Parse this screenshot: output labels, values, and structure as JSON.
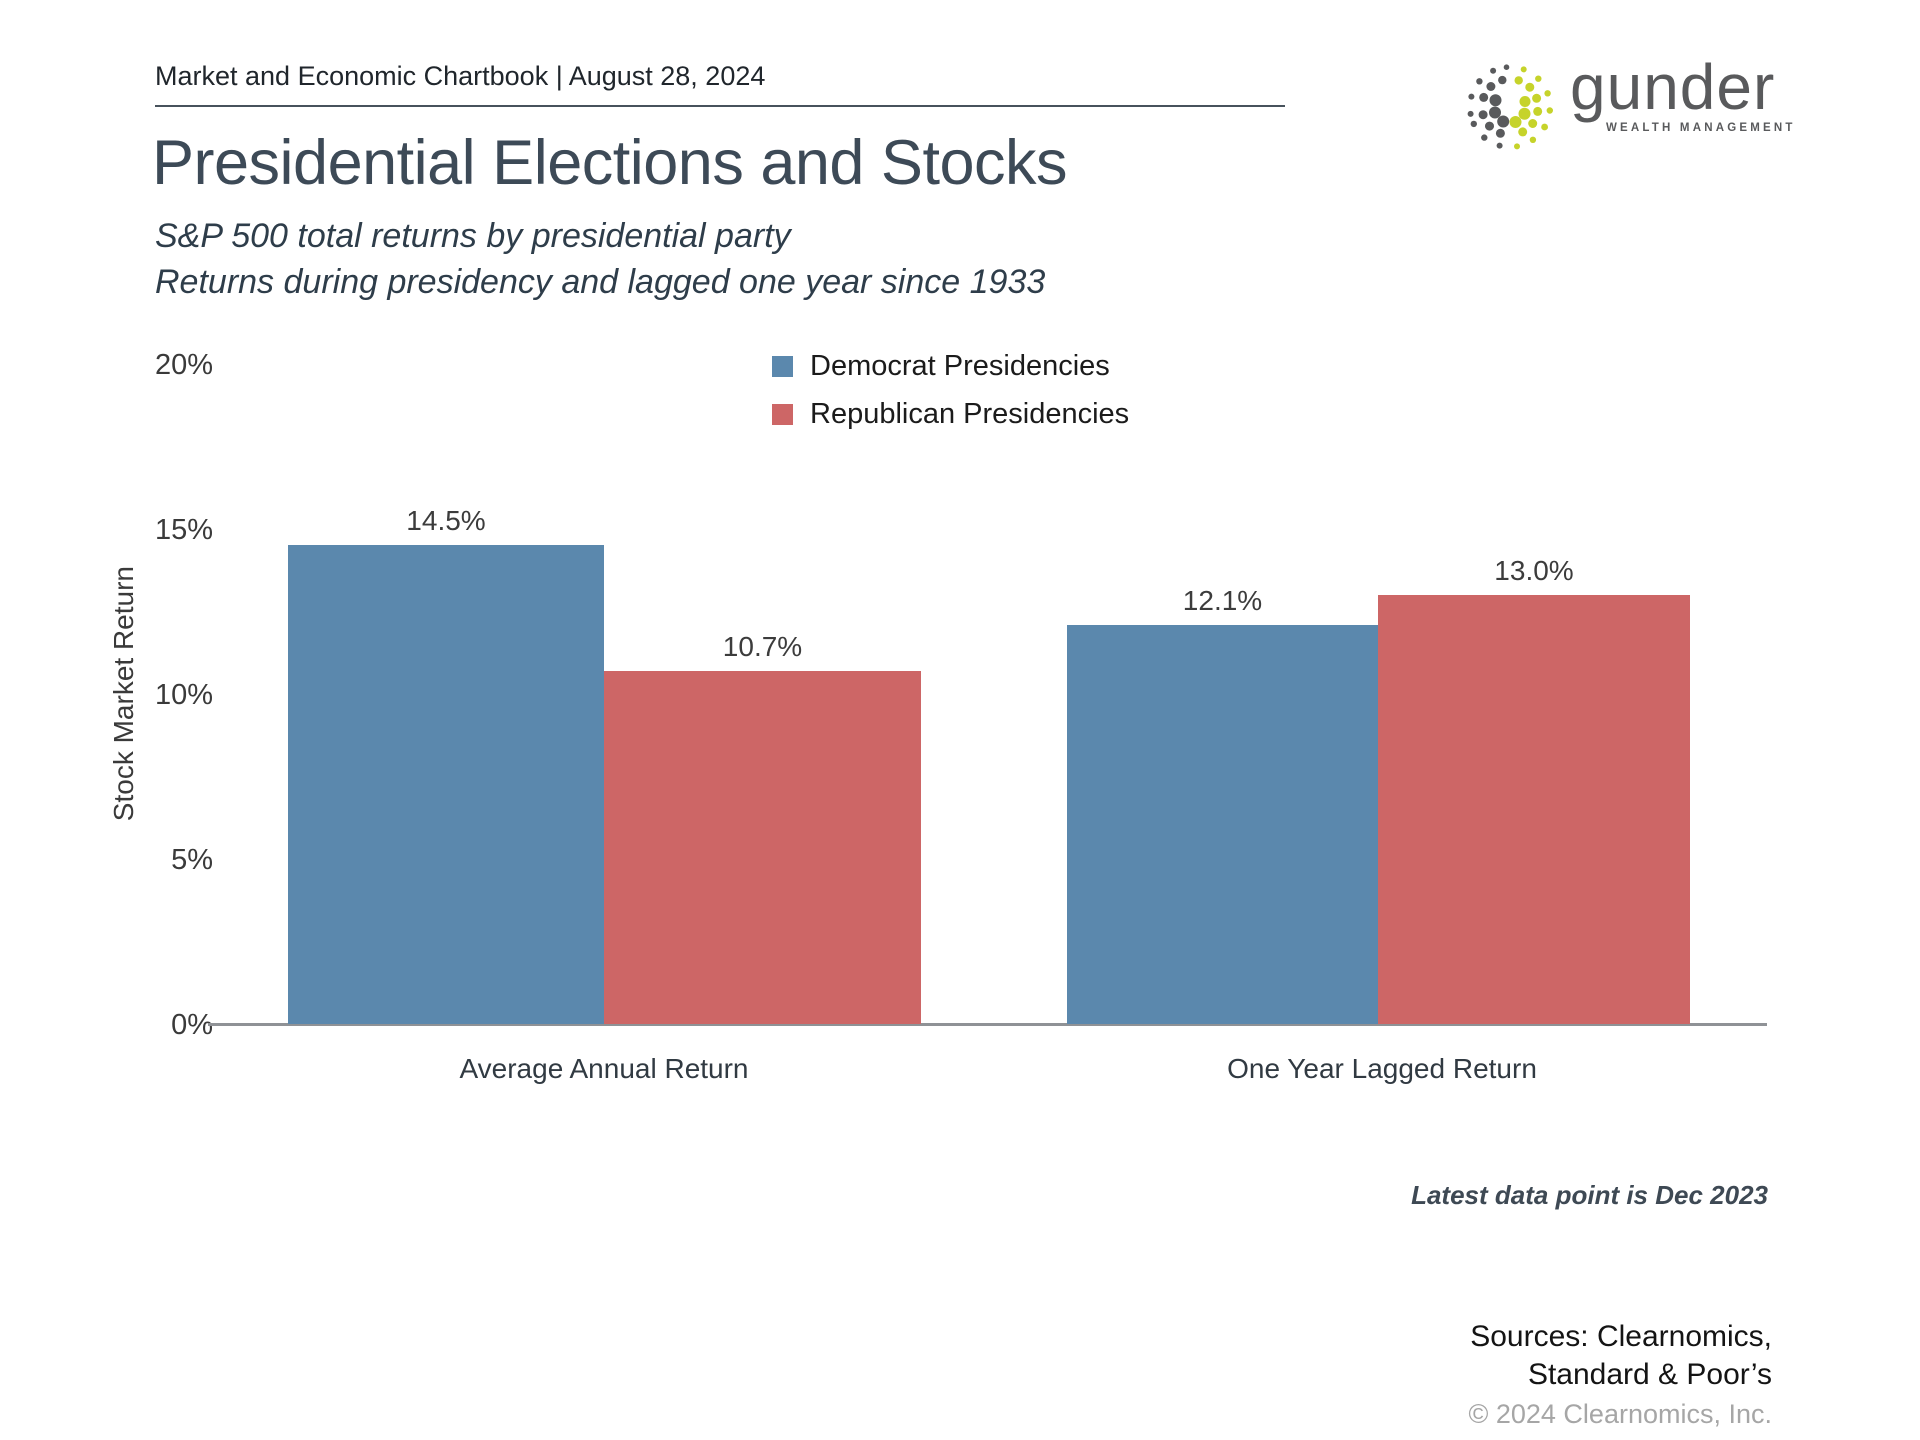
{
  "header": {
    "chartbook_title": "Market and Economic Chartbook | August 28, 2024"
  },
  "logo": {
    "brand": "gunder",
    "tagline": "WEALTH MANAGEMENT"
  },
  "title": "Presidential Elections and Stocks",
  "subtitle": {
    "line1": "S&P 500 total returns by presidential party",
    "line2": "Returns during presidency and lagged one year since 1933"
  },
  "colors": {
    "democrat": "#5b88ad",
    "republican": "#cd6666",
    "brand-gray": "#595a5c",
    "brand-lime": "#c6d32a",
    "title-slate": "#3d4a57"
  },
  "chart_data": {
    "type": "bar",
    "title": "Presidential Elections and Stocks",
    "categories": [
      "Average Annual Return",
      "One Year Lagged Return"
    ],
    "series": [
      {
        "name": "Democrat Presidencies",
        "color": "#5b88ad",
        "values": [
          14.5,
          12.1
        ]
      },
      {
        "name": "Republican Presidencies",
        "color": "#cd6666",
        "values": [
          10.7,
          13.0
        ]
      }
    ],
    "value_labels": [
      "14.5%",
      "10.7%",
      "12.1%",
      "13.0%"
    ],
    "ylabel": "Stock Market Return",
    "yticks": [
      "0%",
      "5%",
      "10%",
      "15%",
      "20%"
    ],
    "ylim": [
      0,
      20
    ],
    "grid": false,
    "legend_position": "top-center"
  },
  "footnotes": {
    "latest_data": "Latest data point is Dec 2023",
    "sources_line1": "Sources: Clearnomics,",
    "sources_line2": "Standard & Poor’s",
    "copyright": "© 2024 Clearnomics, Inc."
  }
}
